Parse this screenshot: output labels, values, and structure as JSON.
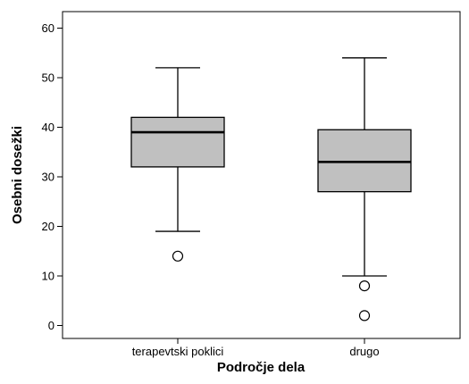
{
  "chart_data": {
    "type": "boxplot",
    "xlabel": "Področje dela",
    "ylabel": "Osebni dosežki",
    "ylim": [
      -2,
      64
    ],
    "yticks": [
      0,
      10,
      20,
      30,
      40,
      50,
      60
    ],
    "grid": false,
    "categories": [
      "terapevtski poklici",
      "drugo"
    ],
    "boxes": [
      {
        "category": "terapevtski poklici",
        "whisker_low": 19,
        "q1": 32,
        "median": 39,
        "q3": 42,
        "whisker_high": 52,
        "outliers": [
          14
        ]
      },
      {
        "category": "drugo",
        "whisker_low": 10,
        "q1": 27,
        "median": 33,
        "q3": 39.5,
        "whisker_high": 54,
        "outliers": [
          8,
          2
        ]
      }
    ],
    "box_fill": "#c0c0c0"
  }
}
